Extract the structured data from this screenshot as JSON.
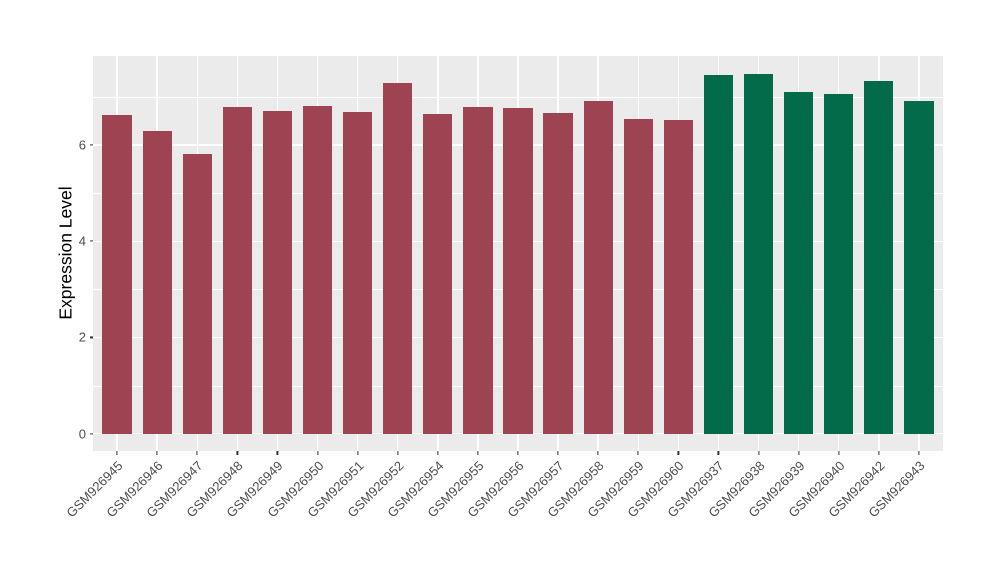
{
  "chart_data": {
    "type": "bar",
    "title": "",
    "xlabel": "",
    "ylabel": "Expression Level",
    "categories": [
      "GSM926945",
      "GSM926946",
      "GSM926947",
      "GSM926948",
      "GSM926949",
      "GSM926950",
      "GSM926951",
      "GSM926952",
      "GSM926954",
      "GSM926955",
      "GSM926956",
      "GSM926957",
      "GSM926958",
      "GSM926959",
      "GSM926960",
      "GSM926937",
      "GSM926938",
      "GSM926939",
      "GSM926940",
      "GSM926942",
      "GSM926943"
    ],
    "values": [
      6.62,
      6.29,
      5.82,
      6.8,
      6.71,
      6.82,
      6.68,
      7.28,
      6.65,
      6.8,
      6.76,
      6.66,
      6.92,
      6.54,
      6.52,
      7.46,
      7.47,
      7.1,
      7.07,
      7.34,
      6.92
    ],
    "bar_groups": [
      "group1",
      "group1",
      "group1",
      "group1",
      "group1",
      "group1",
      "group1",
      "group1",
      "group1",
      "group1",
      "group1",
      "group1",
      "group1",
      "group1",
      "group1",
      "group2",
      "group2",
      "group2",
      "group2",
      "group2",
      "group2"
    ],
    "group_colors": {
      "group1": "#9d4351",
      "group2": "#036b4a"
    },
    "yticks": [
      0,
      2,
      4,
      6
    ],
    "ytick_labels": [
      "0",
      "2",
      "4",
      "6"
    ],
    "minor_yticks": [
      1,
      3,
      5,
      7
    ],
    "ylim": [
      -0.36,
      7.85
    ],
    "bar_width_fraction": 0.73,
    "grid": true,
    "legend_position": "none",
    "panel_bg": "#ebebeb",
    "grid_color": "#ffffff"
  }
}
